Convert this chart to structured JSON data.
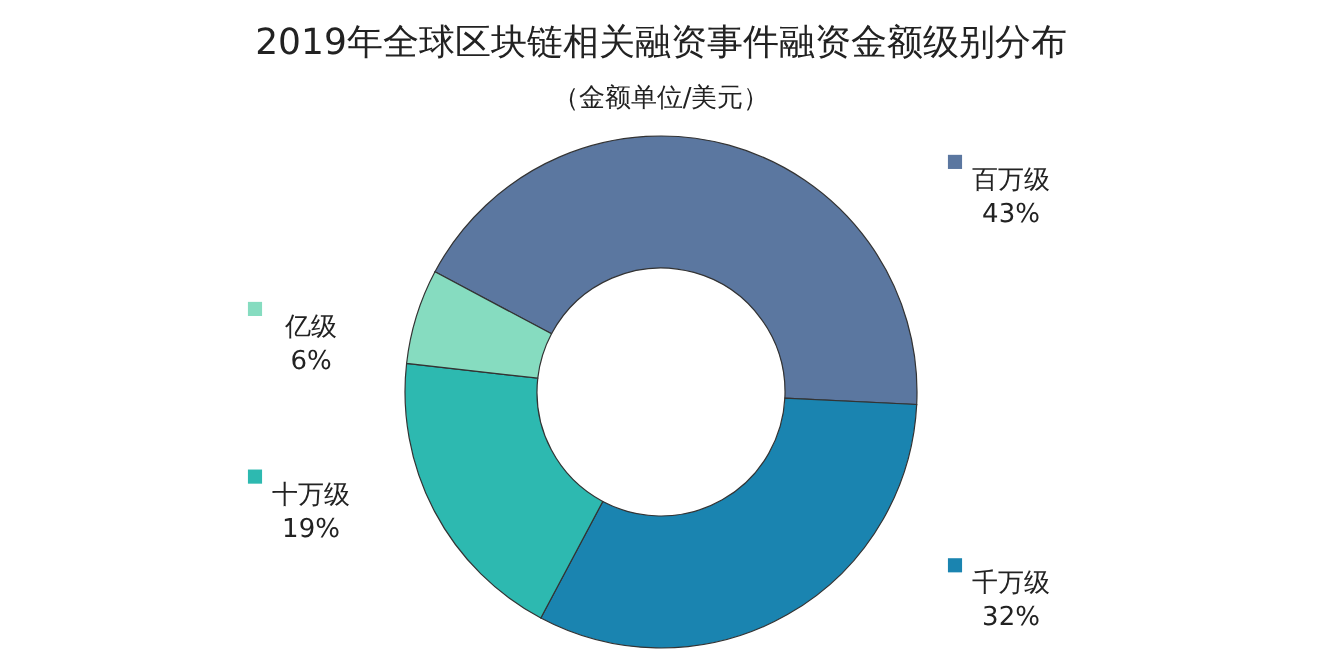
{
  "chart_data": {
    "type": "donut",
    "title": "2019年全球区块链相关融资事件融资金额级别分布",
    "subtitle": "（金额单位/美元）",
    "categories": [
      "百万级",
      "千万级",
      "十万级",
      "亿级"
    ],
    "values": [
      43,
      32,
      19,
      6
    ],
    "value_labels": [
      "43%",
      "32%",
      "19%",
      "6%"
    ],
    "colors": [
      "#5b77a0",
      "#1a84b0",
      "#2db9b0",
      "#86dcc0"
    ],
    "legend": "right"
  }
}
